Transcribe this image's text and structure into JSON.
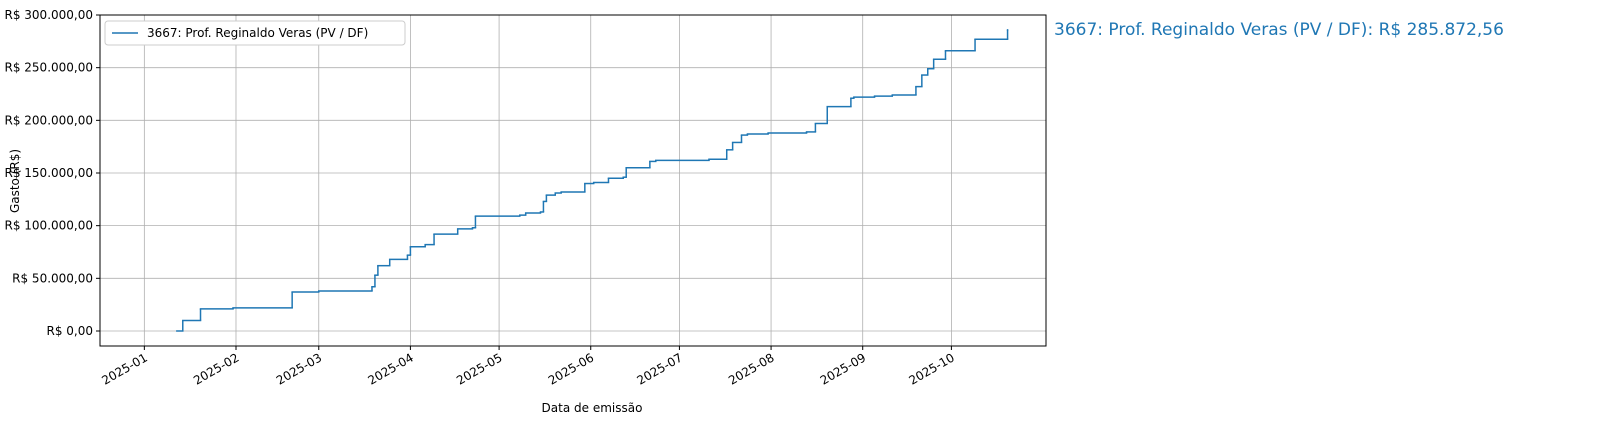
{
  "chart_data": {
    "type": "step",
    "xlabel": "Data de emissão",
    "ylabel": "Gasto (R$)",
    "annotation": "3667: Prof. Reginaldo Veras (PV / DF): R$ 285.872,56",
    "legend": "upper left",
    "grid": true,
    "xlim": [
      -15,
      305
    ],
    "xticks": [
      {
        "value": 0,
        "label": "2025-01"
      },
      {
        "value": 31,
        "label": "2025-02"
      },
      {
        "value": 59,
        "label": "2025-03"
      },
      {
        "value": 90,
        "label": "2025-04"
      },
      {
        "value": 120,
        "label": "2025-05"
      },
      {
        "value": 151,
        "label": "2025-06"
      },
      {
        "value": 181,
        "label": "2025-07"
      },
      {
        "value": 212,
        "label": "2025-08"
      },
      {
        "value": 243,
        "label": "2025-09"
      },
      {
        "value": 273,
        "label": "2025-10"
      }
    ],
    "ylim": [
      -14250,
      300000
    ],
    "yticks": [
      {
        "value": 0,
        "label": "R$ 0,00"
      },
      {
        "value": 50000,
        "label": "R$ 50.000,00"
      },
      {
        "value": 100000,
        "label": "R$ 100.000,00"
      },
      {
        "value": 150000,
        "label": "R$ 150.000,00"
      },
      {
        "value": 200000,
        "label": "R$ 200.000,00"
      },
      {
        "value": 250000,
        "label": "R$ 250.000,00"
      },
      {
        "value": 300000,
        "label": "R$ 300.000,00"
      }
    ],
    "x": [
      11,
      13,
      19,
      30,
      50,
      59,
      77,
      78,
      79,
      83,
      89,
      90,
      95,
      98,
      106,
      111,
      112,
      127,
      129,
      134,
      135,
      136,
      139,
      141,
      149,
      152,
      157,
      162,
      163,
      171,
      173,
      191,
      197,
      199,
      202,
      204,
      211,
      224,
      227,
      231,
      239,
      240,
      247,
      253,
      261,
      263,
      265,
      267,
      271,
      281,
      292
    ],
    "series": [
      {
        "name": "3667: Prof. Reginaldo Veras (PV / DF)",
        "color": "#1f77b4",
        "values": [
          0,
          10000,
          21000,
          22000,
          37000,
          38000,
          42000,
          53000,
          62000,
          68000,
          72000,
          80000,
          82000,
          92000,
          97000,
          98000,
          109000,
          110000,
          112000,
          113000,
          123000,
          129000,
          131000,
          132000,
          140000,
          141000,
          145000,
          146000,
          155000,
          161000,
          162000,
          163000,
          172000,
          179000,
          186000,
          187000,
          188000,
          189000,
          197000,
          213000,
          221000,
          222000,
          223000,
          224000,
          232000,
          243000,
          249000,
          258000,
          266000,
          277000,
          285872.56
        ]
      }
    ]
  }
}
